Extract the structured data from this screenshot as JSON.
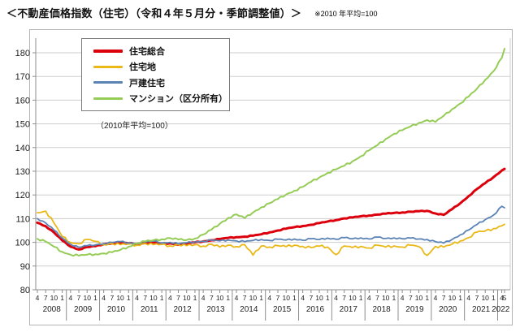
{
  "header": {
    "title": "＜不動産価格指数（住宅）（令和４年５月分・季節調整値）＞",
    "note": "※2010 年平均=100"
  },
  "chart_data": {
    "type": "line",
    "title": "＜不動産価格指数（住宅）（令和４年５月分・季節調整値）＞",
    "note": "※2010 年平均=100",
    "subtitle": "（2010年平均=100）",
    "xlabel": "",
    "ylabel": "",
    "ylim": [
      80,
      186
    ],
    "yticks": [
      80,
      90,
      100,
      110,
      120,
      130,
      140,
      150,
      160,
      170,
      180
    ],
    "grid": "horizontal",
    "legend_position": "top-left",
    "years": [
      "2008",
      "2009",
      "2010",
      "2011",
      "2012",
      "2013",
      "2014",
      "2015",
      "2016",
      "2017",
      "2018",
      "2019",
      "2020",
      "2021",
      "2022"
    ],
    "x_dates": [
      "2008-04",
      "2008-07",
      "2008-10",
      "2009-01",
      "2009-04",
      "2009-07",
      "2009-10",
      "2010-01",
      "2010-04",
      "2010-07",
      "2010-10",
      "2011-01",
      "2011-04",
      "2011-07",
      "2011-10",
      "2012-01",
      "2012-04",
      "2012-07",
      "2012-10",
      "2013-01",
      "2013-04",
      "2013-07",
      "2013-10",
      "2014-01",
      "2014-04",
      "2014-07",
      "2014-10",
      "2015-01",
      "2015-04",
      "2015-07",
      "2015-10",
      "2016-01",
      "2016-04",
      "2016-07",
      "2016-10",
      "2017-01",
      "2017-04",
      "2017-07",
      "2017-10",
      "2018-01",
      "2018-04",
      "2018-07",
      "2018-10",
      "2019-01",
      "2019-04",
      "2019-07",
      "2019-10",
      "2020-01",
      "2020-04",
      "2020-07",
      "2020-10",
      "2021-01",
      "2021-04",
      "2021-07",
      "2021-10",
      "2022-01",
      "2022-04",
      "2022-05"
    ],
    "series": [
      {
        "id": "sogo",
        "name": "住宅総合",
        "color": "#dc000c",
        "width": 3,
        "values": [
          108.3,
          106.8,
          104.2,
          100.8,
          98.2,
          97.0,
          98.0,
          98.4,
          99.2,
          99.6,
          99.8,
          99.6,
          99.3,
          99.8,
          100.0,
          99.4,
          99.6,
          99.0,
          99.5,
          100.0,
          100.4,
          100.9,
          101.4,
          101.9,
          102.2,
          102.4,
          102.8,
          103.4,
          104.2,
          105.0,
          105.8,
          106.4,
          106.9,
          107.4,
          108.1,
          108.8,
          109.4,
          110.1,
          110.5,
          111.0,
          111.3,
          111.7,
          112.1,
          112.4,
          112.6,
          112.9,
          113.1,
          113.3,
          112.2,
          111.6,
          114.0,
          116.5,
          119.5,
          122.5,
          125.0,
          127.5,
          130.3,
          131.0
        ]
      },
      {
        "id": "jutakuchi",
        "name": "住宅地",
        "color": "#eab817",
        "width": 1.8,
        "values": [
          112.5,
          113.2,
          108.2,
          102.5,
          100.0,
          99.4,
          101.2,
          100.4,
          99.0,
          99.5,
          99.0,
          99.3,
          98.8,
          99.5,
          99.0,
          99.2,
          98.5,
          99.0,
          98.6,
          99.0,
          98.4,
          99.2,
          98.0,
          98.8,
          98.2,
          99.0,
          94.6,
          98.5,
          98.0,
          98.6,
          98.2,
          98.8,
          98.3,
          97.8,
          98.4,
          98.0,
          94.8,
          98.5,
          97.8,
          98.3,
          97.6,
          98.8,
          98.0,
          98.5,
          98.0,
          98.8,
          98.2,
          94.5,
          98.3,
          98.0,
          99.2,
          100.6,
          102.0,
          104.3,
          104.8,
          105.8,
          107.0,
          107.6
        ]
      },
      {
        "id": "kodate",
        "name": "戸建住宅",
        "color": "#5b84b5",
        "width": 1.8,
        "values": [
          110.0,
          108.2,
          105.2,
          101.8,
          99.2,
          97.9,
          98.6,
          98.9,
          99.5,
          100.0,
          100.3,
          99.8,
          99.5,
          100.2,
          100.5,
          99.8,
          100.0,
          99.4,
          99.8,
          100.2,
          100.5,
          100.9,
          100.6,
          101.0,
          100.6,
          100.3,
          100.8,
          101.2,
          100.8,
          101.3,
          101.0,
          101.4,
          100.9,
          101.5,
          101.2,
          101.8,
          101.3,
          102.0,
          101.5,
          101.9,
          101.4,
          102.2,
          101.6,
          101.9,
          101.5,
          101.8,
          101.4,
          101.2,
          100.3,
          99.7,
          101.2,
          103.2,
          105.2,
          107.5,
          109.6,
          111.5,
          115.2,
          114.6
        ]
      },
      {
        "id": "mansion",
        "name": "マンション（区分所有）",
        "color": "#95cc56",
        "width": 2,
        "values": [
          101.5,
          100.3,
          98.2,
          96.0,
          94.8,
          94.4,
          94.8,
          95.0,
          95.3,
          95.8,
          96.8,
          98.2,
          99.6,
          100.4,
          100.9,
          101.3,
          101.8,
          101.2,
          101.0,
          101.6,
          103.3,
          105.3,
          107.8,
          110.3,
          111.8,
          110.2,
          112.6,
          114.8,
          116.5,
          118.3,
          120.2,
          121.8,
          123.4,
          125.5,
          127.4,
          129.3,
          130.8,
          132.3,
          134.2,
          136.3,
          138.8,
          141.0,
          143.6,
          145.8,
          147.3,
          148.9,
          150.4,
          151.6,
          150.8,
          153.4,
          156.2,
          158.6,
          161.5,
          164.8,
          168.6,
          172.2,
          177.8,
          181.7
        ]
      }
    ]
  }
}
